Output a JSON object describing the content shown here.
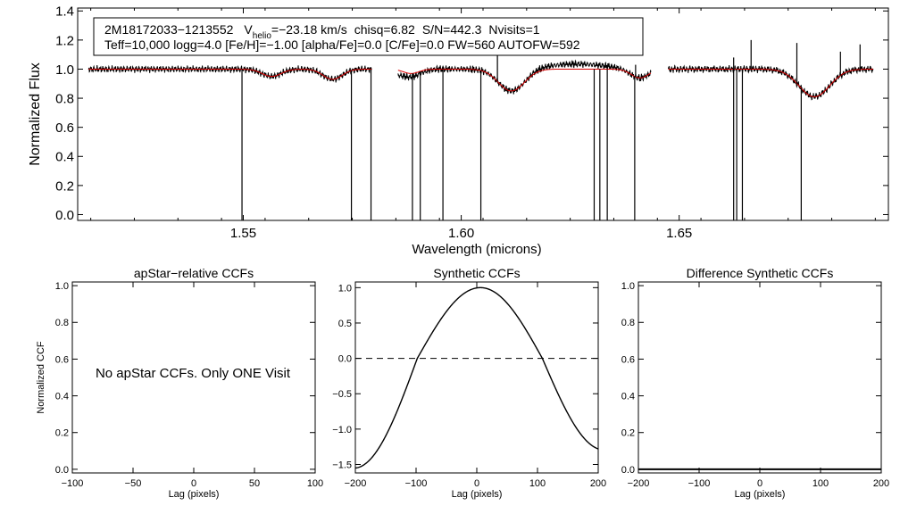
{
  "chart_data": [
    {
      "type": "line",
      "id": "spectrum",
      "xlabel": "Wavelength (microns)",
      "ylabel": "Normalized Flux",
      "xlim": [
        1.512,
        1.698
      ],
      "ylim": [
        -0.04,
        1.42
      ],
      "x_ticks": [
        {
          "value": 1.55,
          "label": "1.55"
        },
        {
          "value": 1.6,
          "label": "1.60"
        },
        {
          "value": 1.65,
          "label": "1.65"
        }
      ],
      "y_ticks": [
        {
          "value": 0.0,
          "label": "0.0"
        },
        {
          "value": 0.2,
          "label": "0.2"
        },
        {
          "value": 0.4,
          "label": "0.4"
        },
        {
          "value": 0.6,
          "label": "0.6"
        },
        {
          "value": 0.8,
          "label": "0.8"
        },
        {
          "value": 1.0,
          "label": "1.0"
        },
        {
          "value": 1.2,
          "label": "1.2"
        },
        {
          "value": 1.4,
          "label": "1.4"
        }
      ],
      "legend_box": {
        "line1": {
          "star": "2M18172033−1213552",
          "v_label": "V",
          "v_sub": "helio",
          "v_value": "=−23.18 km/s",
          "chisq": "chisq=6.82",
          "snr": "S/N=442.3",
          "nvisits": "Nvisits=1"
        },
        "line2": "Teff=10,000 logg=4.0 [Fe/H]=−1.00 [alpha/Fe]=0.0 [C/Fe]=0.0 FW=560 AUTOFW=592"
      },
      "chips": [
        [
          1.5145,
          1.5795
        ],
        [
          1.5855,
          1.6435
        ],
        [
          1.6475,
          1.6945
        ]
      ],
      "lines": [
        {
          "center": 1.5565,
          "depth": 0.05,
          "width": 0.0022
        },
        {
          "center": 1.5705,
          "depth": 0.07,
          "width": 0.0022
        },
        {
          "center": 1.5885,
          "depth": 0.03,
          "width": 0.0018
        },
        {
          "center": 1.6115,
          "depth": 0.15,
          "width": 0.003
        },
        {
          "center": 1.641,
          "depth": 0.06,
          "width": 0.002
        },
        {
          "center": 1.681,
          "depth": 0.19,
          "width": 0.0035
        }
      ],
      "down_spikes": [
        1.5497,
        1.5748,
        1.5793,
        1.5888,
        1.5906,
        1.5958,
        1.6045,
        1.6305,
        1.6318,
        1.6335,
        1.6398,
        1.6625,
        1.6632,
        1.6645,
        1.678
      ],
      "up_spikes": [
        {
          "x": 1.6083,
          "y": 1.12
        },
        {
          "x": 1.64,
          "y": 1.03
        },
        {
          "x": 1.6625,
          "y": 1.08
        },
        {
          "x": 1.6665,
          "y": 1.2
        },
        {
          "x": 1.677,
          "y": 1.18
        },
        {
          "x": 1.687,
          "y": 1.12
        },
        {
          "x": 1.6915,
          "y": 1.17
        }
      ],
      "colors": {
        "observed": "#000000",
        "model": "#dd0000"
      }
    },
    {
      "type": "line",
      "id": "apstar_ccf",
      "title": "apStar−relative CCFs",
      "xlabel": "Lag (pixels)",
      "ylabel": "Normalized CCF",
      "xlim": [
        -100,
        100
      ],
      "ylim": [
        -0.02,
        1.02
      ],
      "x_ticks": [
        {
          "value": -100,
          "label": "−100"
        },
        {
          "value": -50,
          "label": "−50"
        },
        {
          "value": 0,
          "label": "0"
        },
        {
          "value": 50,
          "label": "50"
        },
        {
          "value": 100,
          "label": "100"
        }
      ],
      "y_ticks": [
        {
          "value": 0.0,
          "label": "0.0"
        },
        {
          "value": 0.2,
          "label": "0.2"
        },
        {
          "value": 0.4,
          "label": "0.4"
        },
        {
          "value": 0.6,
          "label": "0.6"
        },
        {
          "value": 0.8,
          "label": "0.8"
        },
        {
          "value": 1.0,
          "label": "1.0"
        }
      ],
      "annotation": "No apStar CCFs.  Only ONE Visit"
    },
    {
      "type": "line",
      "id": "synthetic_ccf",
      "title": "Synthetic CCFs",
      "xlabel": "Lag (pixels)",
      "xlim": [
        -200,
        200
      ],
      "ylim": [
        -1.62,
        1.08
      ],
      "x_ticks": [
        {
          "value": -200,
          "label": "−200"
        },
        {
          "value": -100,
          "label": "−100"
        },
        {
          "value": 0,
          "label": "0"
        },
        {
          "value": 100,
          "label": "100"
        },
        {
          "value": 200,
          "label": "200"
        }
      ],
      "y_ticks": [
        {
          "value": -1.5,
          "label": "−1.5"
        },
        {
          "value": -1.0,
          "label": "−1.0"
        },
        {
          "value": -0.5,
          "label": "−0.5"
        },
        {
          "value": 0.0,
          "label": "0.0"
        },
        {
          "value": 0.5,
          "label": "0.5"
        },
        {
          "value": 1.0,
          "label": "1.0"
        }
      ],
      "peak_lag": 6,
      "peak_value": 1.0,
      "zero_crossings": [
        -98,
        108
      ],
      "end_values": {
        "left": -1.55,
        "right": -1.28
      },
      "zero_line": 0.0
    },
    {
      "type": "line",
      "id": "difference_ccf",
      "title": "Difference Synthetic CCFs",
      "xlabel": "Lag (pixels)",
      "xlim": [
        -200,
        200
      ],
      "ylim": [
        -0.02,
        1.02
      ],
      "x_ticks": [
        {
          "value": -200,
          "label": "−200"
        },
        {
          "value": -100,
          "label": "−100"
        },
        {
          "value": 0,
          "label": "0"
        },
        {
          "value": 100,
          "label": "100"
        },
        {
          "value": 200,
          "label": "200"
        }
      ],
      "y_ticks": [
        {
          "value": 0.0,
          "label": "0.0"
        },
        {
          "value": 0.2,
          "label": "0.2"
        },
        {
          "value": 0.4,
          "label": "0.4"
        },
        {
          "value": 0.6,
          "label": "0.6"
        },
        {
          "value": 0.8,
          "label": "0.8"
        },
        {
          "value": 1.0,
          "label": "1.0"
        }
      ],
      "flat_value": 0.0
    }
  ]
}
